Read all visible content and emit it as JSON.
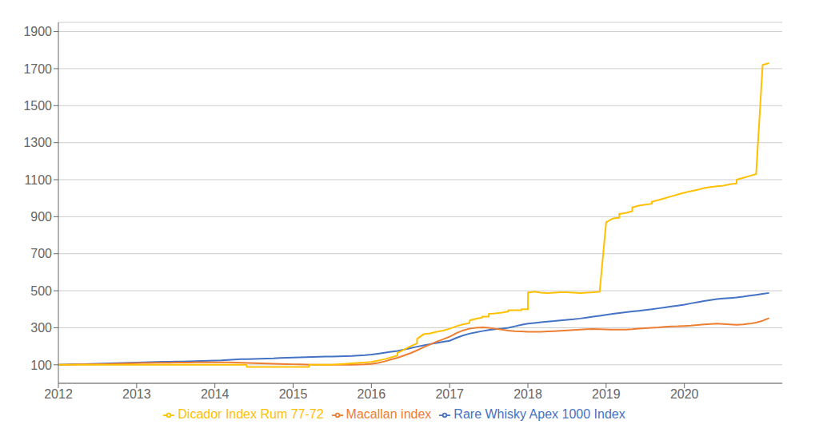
{
  "chart_data": {
    "type": "line",
    "xlim": [
      2012.0,
      2021.25
    ],
    "ylim": [
      0,
      1950
    ],
    "xticks": [
      2012,
      2013,
      2014,
      2015,
      2016,
      2017,
      2018,
      2019,
      2020
    ],
    "yticks": [
      100,
      300,
      500,
      700,
      900,
      1100,
      1300,
      1500,
      1700,
      1900
    ],
    "grid": true,
    "legend": "bottom",
    "series": [
      {
        "name": "Rare Whisky Apex 1000 Index",
        "color": "#4472c4",
        "x": [
          2012.0,
          2012.083,
          2012.167,
          2012.25,
          2012.333,
          2012.417,
          2012.5,
          2012.583,
          2012.667,
          2012.75,
          2012.833,
          2012.917,
          2013.0,
          2013.083,
          2013.167,
          2013.25,
          2013.333,
          2013.417,
          2013.5,
          2013.583,
          2013.667,
          2013.75,
          2013.833,
          2013.917,
          2014.0,
          2014.083,
          2014.167,
          2014.25,
          2014.333,
          2014.417,
          2014.5,
          2014.583,
          2014.667,
          2014.75,
          2014.833,
          2014.917,
          2015.0,
          2015.083,
          2015.167,
          2015.25,
          2015.333,
          2015.417,
          2015.5,
          2015.583,
          2015.667,
          2015.75,
          2015.833,
          2015.917,
          2016.0,
          2016.083,
          2016.167,
          2016.25,
          2016.333,
          2016.417,
          2016.5,
          2016.583,
          2016.667,
          2016.75,
          2016.833,
          2016.917,
          2017.0,
          2017.083,
          2017.167,
          2017.25,
          2017.333,
          2017.417,
          2017.5,
          2017.583,
          2017.667,
          2017.75,
          2017.833,
          2017.917,
          2018.0,
          2018.083,
          2018.167,
          2018.25,
          2018.333,
          2018.417,
          2018.5,
          2018.583,
          2018.667,
          2018.75,
          2018.833,
          2018.917,
          2019.0,
          2019.083,
          2019.167,
          2019.25,
          2019.333,
          2019.417,
          2019.5,
          2019.583,
          2019.667,
          2019.75,
          2019.833,
          2019.917,
          2020.0,
          2020.083,
          2020.167,
          2020.25,
          2020.333,
          2020.417,
          2020.5,
          2020.583,
          2020.667,
          2020.75,
          2020.833,
          2020.917,
          2021.0,
          2021.083
        ],
        "values": [
          100,
          101,
          102,
          103,
          104,
          105,
          106,
          107,
          108,
          109,
          110,
          111,
          112,
          113,
          114,
          115,
          116,
          117,
          118,
          118,
          119,
          120,
          121,
          122,
          123,
          124,
          126,
          128,
          130,
          131,
          132,
          133,
          134,
          135,
          137,
          138,
          139,
          140,
          141,
          142,
          143,
          144,
          145,
          146,
          147,
          148,
          150,
          152,
          155,
          160,
          165,
          170,
          175,
          182,
          190,
          198,
          205,
          212,
          218,
          224,
          230,
          245,
          258,
          268,
          275,
          282,
          288,
          292,
          296,
          300,
          308,
          316,
          322,
          326,
          330,
          333,
          336,
          340,
          343,
          346,
          350,
          355,
          360,
          365,
          370,
          375,
          380,
          384,
          388,
          392,
          396,
          400,
          405,
          410,
          415,
          420,
          425,
          432,
          438,
          444,
          450,
          455,
          458,
          461,
          464,
          468,
          473,
          478,
          483,
          488
        ]
      },
      {
        "name": "Macallan index",
        "color": "#ed7d31",
        "x": [
          2012.0,
          2012.083,
          2012.167,
          2012.25,
          2012.333,
          2012.417,
          2012.5,
          2012.583,
          2012.667,
          2012.75,
          2012.833,
          2012.917,
          2013.0,
          2013.083,
          2013.167,
          2013.25,
          2013.333,
          2013.417,
          2013.5,
          2013.583,
          2013.667,
          2013.75,
          2013.833,
          2013.917,
          2014.0,
          2014.083,
          2014.167,
          2014.25,
          2014.333,
          2014.417,
          2014.5,
          2014.583,
          2014.667,
          2014.75,
          2014.833,
          2014.917,
          2015.0,
          2015.083,
          2015.167,
          2015.25,
          2015.333,
          2015.417,
          2015.5,
          2015.583,
          2015.667,
          2015.75,
          2015.833,
          2015.917,
          2016.0,
          2016.083,
          2016.167,
          2016.25,
          2016.333,
          2016.417,
          2016.5,
          2016.583,
          2016.667,
          2016.75,
          2016.833,
          2016.917,
          2017.0,
          2017.083,
          2017.167,
          2017.25,
          2017.333,
          2017.417,
          2017.5,
          2017.583,
          2017.667,
          2017.75,
          2017.833,
          2017.917,
          2018.0,
          2018.083,
          2018.167,
          2018.25,
          2018.333,
          2018.417,
          2018.5,
          2018.583,
          2018.667,
          2018.75,
          2018.833,
          2018.917,
          2019.0,
          2019.083,
          2019.167,
          2019.25,
          2019.333,
          2019.417,
          2019.5,
          2019.583,
          2019.667,
          2019.75,
          2019.833,
          2019.917,
          2020.0,
          2020.083,
          2020.167,
          2020.25,
          2020.333,
          2020.417,
          2020.5,
          2020.583,
          2020.667,
          2020.75,
          2020.833,
          2020.917,
          2021.0,
          2021.083
        ],
        "values": [
          100,
          100,
          101,
          102,
          103,
          103,
          104,
          104,
          105,
          106,
          107,
          108,
          109,
          110,
          110,
          111,
          111,
          111,
          112,
          112,
          112,
          113,
          113,
          113,
          113,
          113,
          113,
          112,
          111,
          110,
          109,
          108,
          107,
          106,
          105,
          104,
          103,
          102,
          101,
          100,
          100,
          100,
          100,
          100,
          100,
          100,
          101,
          102,
          105,
          110,
          118,
          128,
          138,
          150,
          163,
          178,
          195,
          210,
          225,
          238,
          252,
          270,
          285,
          295,
          300,
          302,
          300,
          295,
          290,
          285,
          282,
          280,
          278,
          278,
          278,
          280,
          282,
          284,
          286,
          288,
          290,
          292,
          293,
          292,
          291,
          290,
          290,
          290,
          292,
          295,
          298,
          300,
          302,
          305,
          307,
          308,
          310,
          312,
          315,
          318,
          320,
          322,
          320,
          318,
          316,
          318,
          322,
          328,
          338,
          352
        ]
      },
      {
        "name": "Dicador  Index Rum 77-72",
        "color": "#ffc000",
        "x": [
          2012.0,
          2012.25,
          2012.5,
          2012.75,
          2013.0,
          2013.25,
          2013.5,
          2013.75,
          2014.0,
          2014.25,
          2014.4,
          2014.41,
          2014.5,
          2014.75,
          2015.0,
          2015.1,
          2015.2,
          2015.21,
          2015.5,
          2015.75,
          2016.0,
          2016.167,
          2016.333,
          2016.334,
          2016.5,
          2016.583,
          2016.584,
          2016.667,
          2016.75,
          2016.833,
          2016.917,
          2017.0,
          2017.083,
          2017.167,
          2017.25,
          2017.26,
          2017.333,
          2017.417,
          2017.418,
          2017.5,
          2017.501,
          2017.583,
          2017.667,
          2017.75,
          2017.751,
          2017.833,
          2017.917,
          2017.918,
          2018.0,
          2018.001,
          2018.083,
          2018.167,
          2018.25,
          2018.333,
          2018.417,
          2018.5,
          2018.583,
          2018.667,
          2018.75,
          2018.833,
          2018.917,
          2019.0,
          2019.083,
          2019.167,
          2019.168,
          2019.25,
          2019.333,
          2019.334,
          2019.417,
          2019.5,
          2019.583,
          2019.584,
          2019.667,
          2019.75,
          2019.833,
          2019.917,
          2020.0,
          2020.083,
          2020.167,
          2020.25,
          2020.333,
          2020.417,
          2020.5,
          2020.583,
          2020.667,
          2020.668,
          2020.75,
          2020.833,
          2020.917,
          2020.918,
          2021.0,
          2021.083
        ],
        "values": [
          100,
          100,
          100,
          100,
          100,
          100,
          100,
          100,
          100,
          100,
          100,
          88,
          88,
          88,
          88,
          88,
          88,
          100,
          100,
          108,
          115,
          130,
          150,
          165,
          200,
          215,
          240,
          265,
          270,
          278,
          285,
          295,
          308,
          318,
          325,
          340,
          348,
          355,
          360,
          360,
          375,
          378,
          382,
          388,
          395,
          395,
          395,
          400,
          400,
          490,
          495,
          490,
          488,
          490,
          492,
          492,
          490,
          488,
          490,
          492,
          495,
          870,
          890,
          895,
          915,
          920,
          930,
          950,
          960,
          965,
          970,
          980,
          990,
          1000,
          1010,
          1020,
          1030,
          1038,
          1045,
          1055,
          1060,
          1065,
          1068,
          1075,
          1080,
          1100,
          1110,
          1120,
          1130,
          1140,
          1720,
          1730
        ]
      }
    ]
  }
}
